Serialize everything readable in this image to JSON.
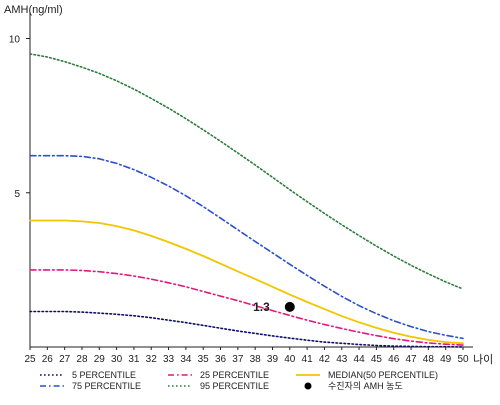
{
  "chart_data": {
    "type": "line",
    "ylabel": "AMH(ng/ml)",
    "xlabel": "나이",
    "x": [
      25,
      26,
      27,
      28,
      29,
      30,
      31,
      32,
      33,
      34,
      35,
      36,
      37,
      38,
      39,
      40,
      41,
      42,
      43,
      44,
      45,
      46,
      47,
      48,
      49,
      50
    ],
    "xlim": [
      25,
      50
    ],
    "ylim": [
      0,
      10.6
    ],
    "yticks": [
      5,
      10
    ],
    "grid": false,
    "legend_position": "bottom",
    "series": [
      {
        "name": "5 PERCENTILE",
        "color": "#0d0d6b",
        "style": "dotted",
        "values": [
          1.15,
          1.15,
          1.15,
          1.13,
          1.1,
          1.06,
          1.01,
          0.95,
          0.87,
          0.79,
          0.7,
          0.61,
          0.52,
          0.44,
          0.36,
          0.29,
          0.22,
          0.16,
          0.12,
          0.08,
          0.05,
          0.03,
          0.02,
          0.01,
          0.01,
          0.0
        ]
      },
      {
        "name": "25 PERCENTILE",
        "color": "#e0197d",
        "style": "dashdot",
        "values": [
          2.5,
          2.5,
          2.5,
          2.48,
          2.44,
          2.38,
          2.3,
          2.2,
          2.08,
          1.95,
          1.8,
          1.65,
          1.5,
          1.34,
          1.18,
          1.02,
          0.87,
          0.73,
          0.6,
          0.48,
          0.37,
          0.27,
          0.19,
          0.13,
          0.09,
          0.06
        ]
      },
      {
        "name": "MEDIAN(50 PERCENTILE)",
        "color": "#f2c500",
        "style": "solid",
        "values": [
          4.1,
          4.1,
          4.1,
          4.07,
          4.02,
          3.92,
          3.78,
          3.6,
          3.4,
          3.18,
          2.95,
          2.7,
          2.45,
          2.2,
          1.95,
          1.7,
          1.46,
          1.23,
          1.0,
          0.8,
          0.62,
          0.46,
          0.33,
          0.23,
          0.16,
          0.12
        ]
      },
      {
        "name": "75 PERCENTILE",
        "color": "#2b50c8",
        "style": "dashdot",
        "values": [
          6.2,
          6.2,
          6.2,
          6.18,
          6.1,
          5.95,
          5.75,
          5.5,
          5.22,
          4.9,
          4.55,
          4.18,
          3.8,
          3.42,
          3.05,
          2.68,
          2.32,
          1.97,
          1.64,
          1.34,
          1.08,
          0.85,
          0.66,
          0.5,
          0.38,
          0.28
        ]
      },
      {
        "name": "95 PERCENTILE",
        "color": "#2e7d3e",
        "style": "dotted",
        "values": [
          9.5,
          9.4,
          9.25,
          9.07,
          8.87,
          8.63,
          8.36,
          8.06,
          7.74,
          7.4,
          7.04,
          6.67,
          6.29,
          5.9,
          5.5,
          5.1,
          4.71,
          4.33,
          3.96,
          3.61,
          3.27,
          2.95,
          2.65,
          2.37,
          2.11,
          1.88
        ]
      }
    ],
    "marker": {
      "name": "수진자의 AMH 농도",
      "x": 40,
      "y": 1.3,
      "label": "1.3",
      "color": "#000000"
    },
    "legend_order": [
      "5 PERCENTILE",
      "25 PERCENTILE",
      "MEDIAN(50 PERCENTILE)",
      "75 PERCENTILE",
      "95 PERCENTILE",
      "수진자의 AMH 농도"
    ]
  }
}
